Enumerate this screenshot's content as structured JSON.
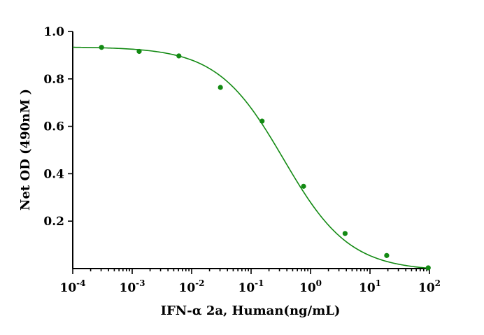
{
  "chart_data": {
    "type": "scatter",
    "title": "",
    "xlabel": "IFN-α 2a, Human(ng/mL)",
    "ylabel": "Net OD (490nM )",
    "x_scale": "log",
    "xlim": [
      0.0001,
      100
    ],
    "ylim": [
      0,
      1.0
    ],
    "x_ticks": [
      {
        "base": "10",
        "exp": "-4"
      },
      {
        "base": "10",
        "exp": "-3"
      },
      {
        "base": "10",
        "exp": "-2"
      },
      {
        "base": "10",
        "exp": "-1"
      },
      {
        "base": "10",
        "exp": "0"
      },
      {
        "base": "10",
        "exp": "1"
      },
      {
        "base": "10",
        "exp": "2"
      }
    ],
    "y_ticks": [
      "0.2",
      "0.4",
      "0.6",
      "0.8",
      "1.0"
    ],
    "grid": false,
    "series": [
      {
        "color": "#138a13",
        "points": [
          {
            "x": 0.000305,
            "y": 0.933
          },
          {
            "x": 0.00131,
            "y": 0.916
          },
          {
            "x": 0.0061,
            "y": 0.897
          },
          {
            "x": 0.0305,
            "y": 0.764
          },
          {
            "x": 0.153,
            "y": 0.622
          },
          {
            "x": 0.763,
            "y": 0.347
          },
          {
            "x": 3.81,
            "y": 0.148
          },
          {
            "x": 19.1,
            "y": 0.055
          },
          {
            "x": 95.4,
            "y": 0.003
          }
        ],
        "fit": {
          "type": "4PL",
          "top": 0.935,
          "bottom": -0.01,
          "ic50": 0.35,
          "hill": 0.78
        }
      }
    ]
  }
}
